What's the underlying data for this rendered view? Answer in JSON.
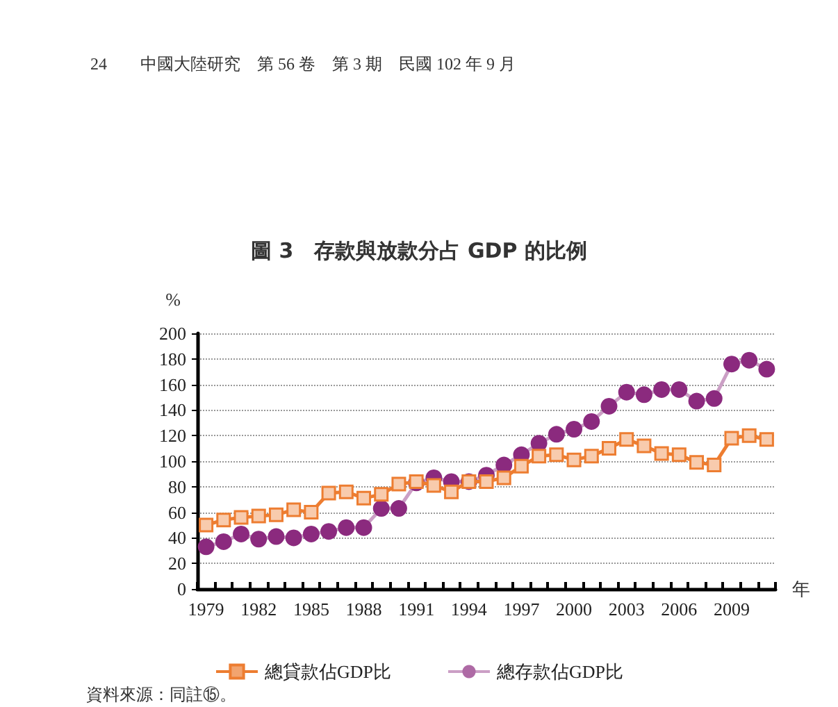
{
  "chart_data": {
    "type": "line",
    "title": "圖 3　存款與放款分占 GDP 的比例",
    "ylabel": "%",
    "xlabel": "年",
    "annotations": [
      "24　　中國大陸研究　第 56 卷　第 3 期　民國 102 年 9 月",
      "資料來源：同註⑮。"
    ],
    "categories": [
      "1979",
      null,
      null,
      "1982",
      null,
      null,
      "1985",
      null,
      null,
      "1988",
      null,
      null,
      "1991",
      null,
      null,
      "1994",
      null,
      null,
      "1997",
      null,
      null,
      "2000",
      null,
      null,
      "2003",
      null,
      null,
      "2006",
      null,
      null,
      "2009",
      null,
      null
    ],
    "series": [
      {
        "name": "總貸款佔GDP比",
        "color": "#ed7d31",
        "marker": "square",
        "values": [
          50,
          54,
          56,
          57,
          58,
          62,
          60,
          75,
          76,
          71,
          74,
          82,
          84,
          81,
          76,
          84,
          84,
          87,
          96,
          104,
          105,
          101,
          104,
          110,
          117,
          112,
          106,
          105,
          99,
          97,
          118,
          120,
          117
        ]
      },
      {
        "name": "總存款佔GDP比",
        "color": "#8b2a7e",
        "marker": "circle",
        "values": [
          33,
          37,
          43,
          39,
          41,
          40,
          43,
          45,
          48,
          48,
          63,
          63,
          83,
          87,
          84,
          84,
          89,
          97,
          105,
          114,
          121,
          125,
          131,
          143,
          154,
          152,
          156,
          156,
          147,
          149,
          176,
          179,
          172
        ]
      }
    ],
    "ylim": [
      0,
      200
    ],
    "yticks": [
      0,
      20,
      40,
      60,
      80,
      100,
      120,
      140,
      160,
      180,
      200
    ],
    "grid": "y",
    "legend": "bottom"
  }
}
